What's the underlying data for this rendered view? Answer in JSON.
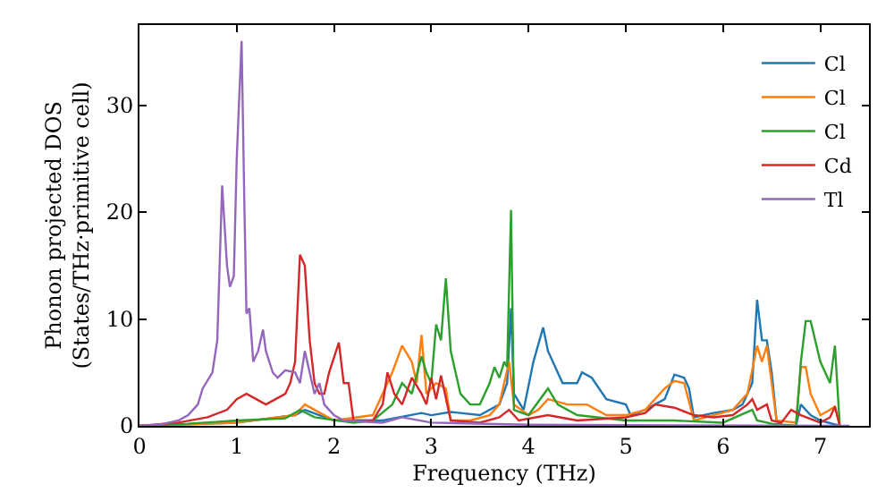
{
  "chart_data": {
    "type": "line",
    "xlabel": "Frequency (THz)",
    "ylabel": "Phonon projected DOS\n(States/THz·primitive cell)",
    "xlim": [
      0,
      7.5
    ],
    "ylim": [
      0,
      37.5
    ],
    "xticks": [
      0,
      1,
      2,
      3,
      4,
      5,
      6,
      7
    ],
    "yticks": [
      0,
      10,
      20,
      30
    ],
    "legend": "top right",
    "series": [
      {
        "name": "Cl",
        "color": "#1f77b4",
        "x": [
          0,
          1,
          1.6,
          1.7,
          2.0,
          2.5,
          2.9,
          3.0,
          3.2,
          3.5,
          3.7,
          3.78,
          3.82,
          3.85,
          3.95,
          4.05,
          4.15,
          4.2,
          4.35,
          4.5,
          4.55,
          4.65,
          4.8,
          5.0,
          5.05,
          5.2,
          5.4,
          5.5,
          5.6,
          5.65,
          5.7,
          5.9,
          6.1,
          6.2,
          6.3,
          6.35,
          6.4,
          6.45,
          6.5,
          6.55,
          6.6,
          6.75,
          6.8,
          6.9,
          7.0,
          7.2
        ],
        "values": [
          0,
          0.3,
          1,
          1.5,
          0.5,
          0.5,
          1.2,
          1,
          1.3,
          1,
          2,
          4,
          11,
          3,
          1.5,
          6,
          9.2,
          7,
          4,
          4,
          5,
          4.5,
          2.5,
          2,
          1,
          1.5,
          2.5,
          4.8,
          4.5,
          3.5,
          0.8,
          1.2,
          1.5,
          2,
          4,
          11.8,
          8,
          8,
          5,
          0.5,
          0,
          0,
          2,
          1,
          0.5,
          0
        ]
      },
      {
        "name": "Cl",
        "color": "#ff7f0e",
        "x": [
          0,
          1,
          1.6,
          1.7,
          2.0,
          2.4,
          2.6,
          2.7,
          2.8,
          2.85,
          2.9,
          2.95,
          3.05,
          3.15,
          3.2,
          3.4,
          3.6,
          3.7,
          3.8,
          3.85,
          4.0,
          4.1,
          4.2,
          4.4,
          4.6,
          4.8,
          5.0,
          5.2,
          5.4,
          5.5,
          5.6,
          5.7,
          5.9,
          6.1,
          6.25,
          6.35,
          6.4,
          6.45,
          6.5,
          6.55,
          6.75,
          6.8,
          6.85,
          6.9,
          7.0,
          7.1,
          7.15,
          7.2
        ],
        "values": [
          0,
          0.3,
          1,
          2,
          0.5,
          1,
          5,
          7.5,
          6,
          4,
          8.5,
          3,
          4,
          3.5,
          0.5,
          0.5,
          1,
          2,
          6,
          2,
          1,
          1.5,
          2.5,
          2,
          2,
          1,
          1,
          1.5,
          3.5,
          4.2,
          4,
          0.5,
          1,
          1.5,
          3,
          7.5,
          6,
          7.5,
          4,
          0.5,
          0.3,
          5.5,
          5.5,
          3,
          1,
          1.5,
          1.8,
          0
        ]
      },
      {
        "name": "Cl",
        "color": "#2ca02c",
        "x": [
          0,
          0.5,
          1.0,
          1.5,
          1.65,
          1.8,
          2.2,
          2.4,
          2.6,
          2.7,
          2.8,
          2.9,
          2.95,
          3.0,
          3.05,
          3.1,
          3.15,
          3.2,
          3.3,
          3.4,
          3.5,
          3.6,
          3.65,
          3.7,
          3.75,
          3.78,
          3.82,
          3.85,
          4.0,
          4.2,
          4.3,
          4.5,
          5,
          5.5,
          6.0,
          6.3,
          6.35,
          6.5,
          6.75,
          6.8,
          6.85,
          6.9,
          7.0,
          7.05,
          7.1,
          7.15,
          7.2
        ],
        "values": [
          0,
          0.2,
          0.5,
          0.7,
          1.5,
          0.8,
          0.3,
          0.5,
          2,
          4,
          3,
          6.5,
          5,
          4,
          9.5,
          8,
          13.8,
          7,
          3,
          2,
          2,
          4,
          5.5,
          4.5,
          6,
          5.5,
          20.2,
          1.5,
          1,
          3.5,
          2,
          1,
          0.5,
          0.5,
          0.3,
          1.5,
          0.5,
          0.2,
          0,
          6,
          9.8,
          9.8,
          6,
          5,
          4,
          7.5,
          0
        ]
      },
      {
        "name": "Cd",
        "color": "#d62728",
        "x": [
          0,
          0.4,
          0.7,
          0.9,
          1.0,
          1.1,
          1.2,
          1.3,
          1.4,
          1.5,
          1.55,
          1.6,
          1.65,
          1.7,
          1.75,
          1.8,
          1.85,
          1.9,
          1.95,
          2.05,
          2.1,
          2.15,
          2.2,
          2.4,
          2.5,
          2.55,
          2.62,
          2.7,
          2.8,
          2.9,
          2.95,
          3.0,
          3.05,
          3.1,
          3.2,
          3.5,
          3.7,
          3.8,
          3.9,
          4.2,
          4.5,
          5.0,
          5.2,
          5.3,
          5.5,
          5.7,
          5.9,
          6.1,
          6.25,
          6.3,
          6.35,
          6.45,
          6.5,
          6.6,
          6.7,
          6.8,
          7.0,
          7.1,
          7.15,
          7.2
        ],
        "values": [
          0,
          0.3,
          0.8,
          1.5,
          2.5,
          3,
          2.5,
          2,
          2.5,
          3,
          4,
          6,
          16,
          15,
          8,
          4,
          3,
          3,
          5,
          7.8,
          4,
          4,
          0.5,
          0.5,
          2,
          5,
          3,
          2,
          4.5,
          3,
          2,
          4.5,
          2.5,
          4.7,
          0.5,
          0.3,
          0.8,
          1.5,
          0.5,
          1,
          0.5,
          0.8,
          1.2,
          2,
          1.7,
          1,
          0.8,
          1,
          2,
          2.5,
          1.5,
          2,
          0.5,
          0.3,
          1.5,
          1,
          0.3,
          0.8,
          1.8,
          0
        ]
      },
      {
        "name": "Tl",
        "color": "#9467bd",
        "x": [
          0,
          0.2,
          0.4,
          0.5,
          0.6,
          0.65,
          0.75,
          0.8,
          0.85,
          0.9,
          0.93,
          0.97,
          1.0,
          1.05,
          1.08,
          1.1,
          1.13,
          1.17,
          1.22,
          1.27,
          1.3,
          1.37,
          1.42,
          1.5,
          1.6,
          1.65,
          1.7,
          1.75,
          1.8,
          1.85,
          1.9,
          1.95,
          2.0,
          2.1,
          2.5,
          2.7,
          3.0,
          4,
          7.3
        ],
        "values": [
          0,
          0.1,
          0.5,
          1,
          2,
          3.5,
          5,
          8,
          22.5,
          15,
          13,
          14,
          25,
          36,
          20,
          10.5,
          11,
          6,
          7,
          9,
          7,
          5,
          4.5,
          5.2,
          5,
          4,
          7,
          5,
          3,
          4,
          2,
          1.5,
          1,
          0.5,
          0.3,
          0.8,
          0.3,
          0.1,
          0
        ]
      }
    ]
  }
}
